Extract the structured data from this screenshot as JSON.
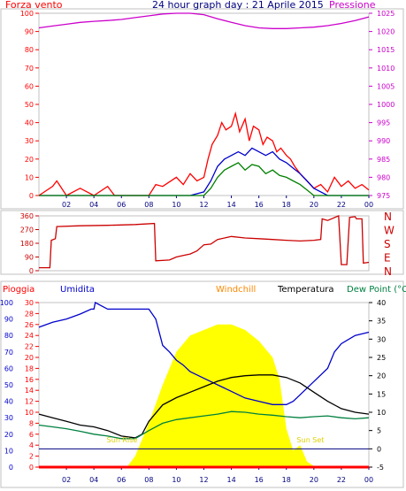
{
  "colors": {
    "background": "#ffffff",
    "frame": "#c0c0c0",
    "gust": "#ff0000",
    "wind_avg": "#0000cc",
    "wind_min": "#008000",
    "pressure": "#cc00cc",
    "direction": "#cc0000",
    "rain": "#ff0000",
    "humidity": "#0000cc",
    "windchill": "#ff8800",
    "temperature": "#000000",
    "dewpoint": "#008040",
    "sun": "#ffff00",
    "zero_line": "#000080"
  },
  "header": {
    "title": "24 hour graph day : 21 Aprile 2015",
    "left_label": "Forza vento",
    "right_label": "Pressione"
  },
  "chart_data": [
    {
      "type": "line",
      "id": "wind_pressure",
      "title": "24 hour graph day : 21 Aprile 2015",
      "series": [
        {
          "name": "Forza vento",
          "axis": "left",
          "color": "#ff0000",
          "x": [
            0,
            1,
            1.3,
            2,
            3,
            4,
            5,
            5.5,
            6,
            7,
            8,
            8.5,
            9,
            10,
            10.5,
            11,
            11.5,
            12,
            12.3,
            12.6,
            13,
            13.3,
            13.6,
            14,
            14.3,
            14.6,
            15,
            15.3,
            15.6,
            16,
            16.3,
            16.6,
            17,
            17.3,
            17.6,
            18,
            18.3,
            18.6,
            19,
            19.5,
            20,
            20.5,
            21,
            21.5,
            22,
            22.5,
            23,
            23.5,
            24
          ],
          "y": [
            0,
            5,
            8,
            0,
            4,
            0,
            5,
            0,
            0,
            0,
            0,
            6,
            5,
            10,
            6,
            12,
            8,
            10,
            20,
            28,
            33,
            40,
            36,
            38,
            45,
            35,
            42,
            30,
            38,
            36,
            28,
            32,
            30,
            24,
            26,
            22,
            20,
            16,
            12,
            8,
            4,
            6,
            2,
            10,
            5,
            8,
            4,
            6,
            3
          ]
        },
        {
          "name": "",
          "axis": "left",
          "color": "#0000cc",
          "x": [
            0,
            11,
            12,
            12.5,
            13,
            13.5,
            14,
            14.5,
            15,
            15.5,
            16,
            16.5,
            17,
            17.5,
            18,
            18.5,
            19,
            19.5,
            20,
            21,
            24
          ],
          "y": [
            0,
            0,
            2,
            8,
            16,
            20,
            22,
            24,
            22,
            26,
            24,
            22,
            24,
            20,
            18,
            15,
            12,
            8,
            4,
            0,
            0
          ]
        },
        {
          "name": "",
          "axis": "left",
          "color": "#008000",
          "x": [
            0,
            12,
            12.5,
            13,
            13.5,
            14,
            14.5,
            15,
            15.5,
            16,
            16.5,
            17,
            17.5,
            18,
            18.5,
            19,
            19.5,
            20,
            24
          ],
          "y": [
            0,
            0,
            4,
            10,
            14,
            16,
            18,
            14,
            17,
            16,
            12,
            14,
            11,
            10,
            8,
            6,
            3,
            0,
            0
          ]
        },
        {
          "name": "Pressione",
          "axis": "right",
          "color": "#cc00cc",
          "x": [
            0,
            1,
            2,
            3,
            4,
            5,
            6,
            7,
            8,
            9,
            10,
            11,
            12,
            13,
            14,
            15,
            16,
            17,
            18,
            19,
            20,
            21,
            22,
            23,
            24
          ],
          "y": [
            1021,
            1021.5,
            1022,
            1022.5,
            1022.8,
            1023,
            1023.3,
            1023.8,
            1024.3,
            1024.8,
            1025,
            1025,
            1024.6,
            1023.5,
            1022.5,
            1021.6,
            1021,
            1020.8,
            1020.8,
            1021,
            1021.2,
            1021.6,
            1022.2,
            1023,
            1024
          ]
        }
      ],
      "left_ticks": [
        "100",
        "90",
        "80",
        "70",
        "60",
        "50",
        "40",
        "30",
        "20",
        "10",
        "0"
      ],
      "right_ticks": [
        "1025",
        "1020",
        "1015",
        "1010",
        "1005",
        "1000",
        "995",
        "990",
        "985",
        "980",
        "975"
      ],
      "x_ticks": [
        "02",
        "04",
        "06",
        "08",
        "10",
        "12",
        "14",
        "16",
        "18",
        "20",
        "22",
        "00"
      ],
      "ylim_left": [
        0,
        100
      ],
      "ylim_right": [
        975,
        1025
      ]
    },
    {
      "type": "line",
      "id": "direction",
      "series": [
        {
          "name": "",
          "color": "#cc0000",
          "x": [
            0,
            0.8,
            0.9,
            1.2,
            1.3,
            3,
            5,
            7,
            8.4,
            8.5,
            9.5,
            10,
            10.5,
            11,
            11.5,
            12,
            12.5,
            13,
            14,
            15,
            16,
            17,
            18,
            19,
            20,
            20.5,
            20.6,
            21,
            21.8,
            22,
            22.4,
            22.6,
            23,
            23.1,
            23.5,
            23.6,
            24
          ],
          "y": [
            20,
            20,
            200,
            210,
            290,
            295,
            298,
            303,
            310,
            65,
            70,
            90,
            100,
            110,
            130,
            170,
            175,
            205,
            225,
            215,
            210,
            205,
            200,
            195,
            200,
            205,
            340,
            330,
            360,
            40,
            40,
            350,
            355,
            340,
            340,
            50,
            55
          ]
        }
      ],
      "left_ticks": [
        "360",
        "270",
        "180",
        "90",
        "0"
      ],
      "right_ticks": [
        "N",
        "W",
        "S",
        "E",
        "N"
      ],
      "ylim": [
        0,
        360
      ]
    },
    {
      "type": "line",
      "id": "temperature_humidity",
      "legend": [
        "Pioggia",
        "Umidita",
        "Windchill",
        "Temperatura",
        "Dew Point (°C"
      ],
      "series": [
        {
          "name": "Umidita",
          "axis": "left_humidity",
          "color": "#0000cc",
          "x": [
            0,
            1,
            2,
            3,
            3.8,
            4,
            4.1,
            5,
            6,
            7,
            8,
            8.5,
            9,
            9.5,
            10,
            10.5,
            11,
            12,
            13,
            14,
            15,
            16,
            17,
            18,
            18.5,
            19,
            20,
            21,
            21.5,
            22,
            23,
            24
          ],
          "y": [
            85,
            88,
            90,
            93,
            96,
            96,
            100,
            96,
            96,
            96,
            96,
            90,
            74,
            70,
            65,
            62,
            58,
            54,
            50,
            46,
            42,
            40,
            38,
            38,
            40,
            44,
            52,
            60,
            70,
            75,
            80,
            82
          ]
        },
        {
          "name": "Temperatura",
          "axis": "right_temp",
          "color": "#000000",
          "x": [
            0,
            1,
            2,
            3,
            4,
            5,
            6,
            7,
            7.5,
            8,
            9,
            10,
            11,
            12,
            13,
            14,
            15,
            16,
            17,
            18,
            19,
            20,
            21,
            22,
            23,
            24
          ],
          "y": [
            9.5,
            8.5,
            7.5,
            6.5,
            6.0,
            5.0,
            3.5,
            3.0,
            4.0,
            7.5,
            12,
            14,
            15.5,
            17,
            18.5,
            19.5,
            20,
            20.2,
            20.2,
            19.5,
            18,
            15.5,
            13,
            11,
            10,
            9.5
          ]
        },
        {
          "name": "Dew Point (°C",
          "axis": "right_temp",
          "color": "#008040",
          "x": [
            0,
            1,
            2,
            3,
            4,
            5,
            6,
            7,
            8,
            9,
            10,
            11,
            12,
            13,
            14,
            15,
            16,
            17,
            18,
            19,
            20,
            21,
            22,
            23,
            24
          ],
          "y": [
            6.5,
            6.0,
            5.5,
            4.8,
            4.0,
            3.5,
            2.8,
            2.8,
            5.0,
            7.0,
            8.0,
            8.5,
            9.0,
            9.5,
            10.2,
            10.0,
            9.5,
            9.2,
            8.8,
            8.5,
            8.8,
            9.0,
            8.5,
            8.2,
            8.5
          ]
        },
        {
          "name": "Windchill",
          "axis": "right_temp",
          "color": "#ff8800",
          "x": [
            0,
            24
          ],
          "y": [
            -5,
            -5
          ]
        },
        {
          "name": "Pioggia",
          "axis": "left_rain",
          "color": "#ff0000",
          "x": [
            0,
            24
          ],
          "y": [
            0,
            0
          ]
        },
        {
          "name": "sun",
          "axis": "left_rain",
          "color": "#ffff00",
          "x": [
            6.4,
            7,
            8,
            9,
            10,
            11,
            12,
            13,
            14,
            15,
            16,
            17,
            17.5,
            18,
            18.5,
            19,
            19.5,
            20.1
          ],
          "y": [
            0,
            2,
            8,
            15,
            21,
            24,
            25,
            26,
            26,
            25,
            23,
            20,
            16,
            7,
            3,
            4,
            1,
            0
          ]
        }
      ],
      "ticks_humidity": [
        "100",
        "90",
        "80",
        "70",
        "60",
        "50",
        "40",
        "30",
        "20",
        "10",
        "0"
      ],
      "ticks_rain": [
        "30",
        "28",
        "26",
        "24",
        "22",
        "20",
        "18",
        "16",
        "14",
        "12",
        "10",
        "8",
        "6",
        "4",
        "2",
        "0"
      ],
      "ticks_temp": [
        "40",
        "35",
        "30",
        "25",
        "20",
        "15",
        "10",
        "5",
        "0",
        "-5"
      ],
      "x_ticks": [
        "02",
        "04",
        "06",
        "08",
        "10",
        "12",
        "14",
        "16",
        "18",
        "20",
        "22",
        "00"
      ],
      "annotations": [
        "Sun Rise",
        "Sun Set"
      ],
      "ylim_humidity": [
        0,
        100
      ],
      "ylim_rain": [
        0,
        30
      ],
      "ylim_temp": [
        -5,
        40
      ]
    }
  ]
}
